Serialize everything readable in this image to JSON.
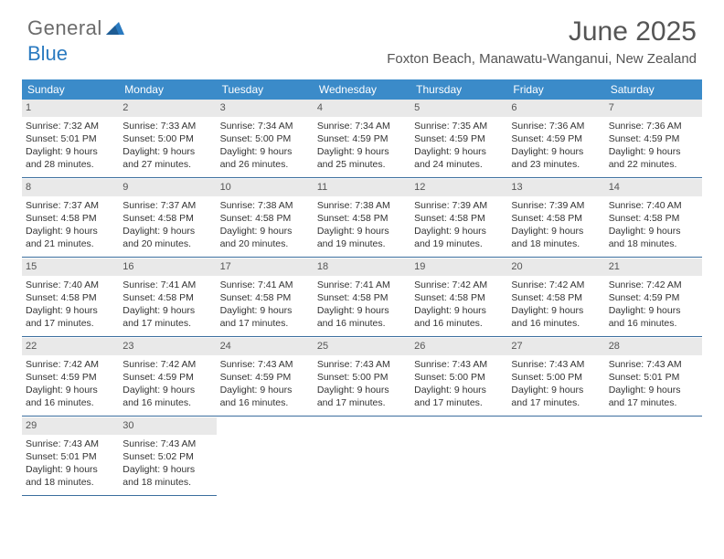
{
  "logo": {
    "text1": "General",
    "text2": "Blue"
  },
  "title": "June 2025",
  "location": "Foxton Beach, Manawatu-Wanganui, New Zealand",
  "colors": {
    "header_bg": "#3b8bc9",
    "header_text": "#ffffff",
    "daynum_bg": "#e9e9e9",
    "daynum_text": "#555555",
    "border": "#3b6e9e",
    "logo_gray": "#6b6b6b",
    "logo_blue": "#2a7ac0",
    "body_text": "#333333"
  },
  "day_headers": [
    "Sunday",
    "Monday",
    "Tuesday",
    "Wednesday",
    "Thursday",
    "Friday",
    "Saturday"
  ],
  "weeks": [
    [
      {
        "n": "1",
        "sr": "7:32 AM",
        "ss": "5:01 PM",
        "dl": "9 hours and 28 minutes."
      },
      {
        "n": "2",
        "sr": "7:33 AM",
        "ss": "5:00 PM",
        "dl": "9 hours and 27 minutes."
      },
      {
        "n": "3",
        "sr": "7:34 AM",
        "ss": "5:00 PM",
        "dl": "9 hours and 26 minutes."
      },
      {
        "n": "4",
        "sr": "7:34 AM",
        "ss": "4:59 PM",
        "dl": "9 hours and 25 minutes."
      },
      {
        "n": "5",
        "sr": "7:35 AM",
        "ss": "4:59 PM",
        "dl": "9 hours and 24 minutes."
      },
      {
        "n": "6",
        "sr": "7:36 AM",
        "ss": "4:59 PM",
        "dl": "9 hours and 23 minutes."
      },
      {
        "n": "7",
        "sr": "7:36 AM",
        "ss": "4:59 PM",
        "dl": "9 hours and 22 minutes."
      }
    ],
    [
      {
        "n": "8",
        "sr": "7:37 AM",
        "ss": "4:58 PM",
        "dl": "9 hours and 21 minutes."
      },
      {
        "n": "9",
        "sr": "7:37 AM",
        "ss": "4:58 PM",
        "dl": "9 hours and 20 minutes."
      },
      {
        "n": "10",
        "sr": "7:38 AM",
        "ss": "4:58 PM",
        "dl": "9 hours and 20 minutes."
      },
      {
        "n": "11",
        "sr": "7:38 AM",
        "ss": "4:58 PM",
        "dl": "9 hours and 19 minutes."
      },
      {
        "n": "12",
        "sr": "7:39 AM",
        "ss": "4:58 PM",
        "dl": "9 hours and 19 minutes."
      },
      {
        "n": "13",
        "sr": "7:39 AM",
        "ss": "4:58 PM",
        "dl": "9 hours and 18 minutes."
      },
      {
        "n": "14",
        "sr": "7:40 AM",
        "ss": "4:58 PM",
        "dl": "9 hours and 18 minutes."
      }
    ],
    [
      {
        "n": "15",
        "sr": "7:40 AM",
        "ss": "4:58 PM",
        "dl": "9 hours and 17 minutes."
      },
      {
        "n": "16",
        "sr": "7:41 AM",
        "ss": "4:58 PM",
        "dl": "9 hours and 17 minutes."
      },
      {
        "n": "17",
        "sr": "7:41 AM",
        "ss": "4:58 PM",
        "dl": "9 hours and 17 minutes."
      },
      {
        "n": "18",
        "sr": "7:41 AM",
        "ss": "4:58 PM",
        "dl": "9 hours and 16 minutes."
      },
      {
        "n": "19",
        "sr": "7:42 AM",
        "ss": "4:58 PM",
        "dl": "9 hours and 16 minutes."
      },
      {
        "n": "20",
        "sr": "7:42 AM",
        "ss": "4:58 PM",
        "dl": "9 hours and 16 minutes."
      },
      {
        "n": "21",
        "sr": "7:42 AM",
        "ss": "4:59 PM",
        "dl": "9 hours and 16 minutes."
      }
    ],
    [
      {
        "n": "22",
        "sr": "7:42 AM",
        "ss": "4:59 PM",
        "dl": "9 hours and 16 minutes."
      },
      {
        "n": "23",
        "sr": "7:42 AM",
        "ss": "4:59 PM",
        "dl": "9 hours and 16 minutes."
      },
      {
        "n": "24",
        "sr": "7:43 AM",
        "ss": "4:59 PM",
        "dl": "9 hours and 16 minutes."
      },
      {
        "n": "25",
        "sr": "7:43 AM",
        "ss": "5:00 PM",
        "dl": "9 hours and 17 minutes."
      },
      {
        "n": "26",
        "sr": "7:43 AM",
        "ss": "5:00 PM",
        "dl": "9 hours and 17 minutes."
      },
      {
        "n": "27",
        "sr": "7:43 AM",
        "ss": "5:00 PM",
        "dl": "9 hours and 17 minutes."
      },
      {
        "n": "28",
        "sr": "7:43 AM",
        "ss": "5:01 PM",
        "dl": "9 hours and 17 minutes."
      }
    ],
    [
      {
        "n": "29",
        "sr": "7:43 AM",
        "ss": "5:01 PM",
        "dl": "9 hours and 18 minutes."
      },
      {
        "n": "30",
        "sr": "7:43 AM",
        "ss": "5:02 PM",
        "dl": "9 hours and 18 minutes."
      },
      null,
      null,
      null,
      null,
      null
    ]
  ],
  "labels": {
    "sunrise": "Sunrise: ",
    "sunset": "Sunset: ",
    "daylight": "Daylight: "
  }
}
